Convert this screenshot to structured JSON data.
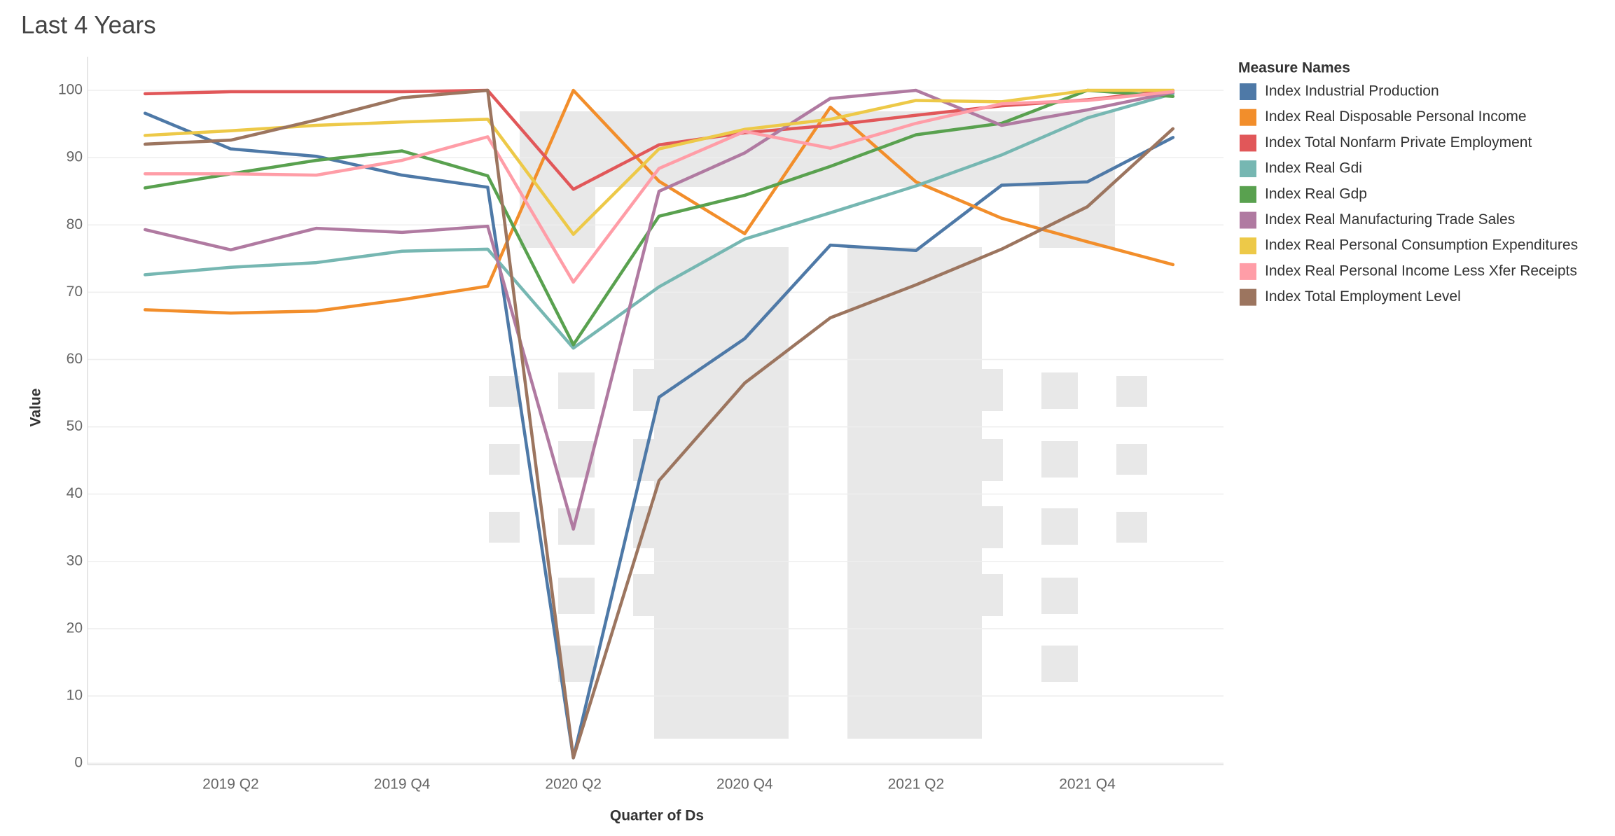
{
  "chart_data": {
    "type": "line",
    "title": "Last 4 Years",
    "x_label": "Quarter of Ds",
    "y_label": "Value",
    "categories": [
      null,
      "2019 Q2",
      null,
      "2019 Q4",
      null,
      "2020 Q2",
      null,
      "2020 Q4",
      null,
      "2021 Q2",
      null,
      "2021 Q4",
      null
    ],
    "ylim": [
      -0.2,
      105
    ],
    "yticks": [
      0,
      10,
      20,
      30,
      40,
      50,
      60,
      70,
      80,
      90,
      100
    ],
    "grid": true,
    "legend_title": "Measure Names",
    "legend_position": "right",
    "series": [
      {
        "name": "Index Industrial Production",
        "color": "#4e79a7",
        "values": [
          96.6,
          91.3,
          90.2,
          87.4,
          85.6,
          0.8,
          54.4,
          63.1,
          77.0,
          76.2,
          85.9,
          86.4,
          93.0
        ]
      },
      {
        "name": "Index Real Disposable Personal Income",
        "color": "#f28e2b",
        "values": [
          67.4,
          66.9,
          67.2,
          68.9,
          70.9,
          100,
          86.5,
          78.7,
          97.5,
          86.4,
          81.0,
          77.5,
          74.1
        ]
      },
      {
        "name": "Index Total Nonfarm Private Employment",
        "color": "#e15759",
        "values": [
          99.5,
          99.8,
          99.8,
          99.8,
          100,
          85.3,
          91.9,
          93.7,
          94.8,
          96.3,
          97.7,
          98.6,
          100
        ]
      },
      {
        "name": "Index Real Gdi",
        "color": "#76b7b2",
        "values": [
          72.6,
          73.7,
          74.4,
          76.1,
          76.4,
          61.7,
          70.8,
          77.9,
          81.8,
          85.8,
          90.4,
          95.9,
          99.5
        ]
      },
      {
        "name": "Index Real Gdp",
        "color": "#59a14f",
        "values": [
          85.5,
          87.6,
          89.6,
          91.0,
          87.3,
          62.2,
          81.3,
          84.4,
          88.7,
          93.4,
          95.1,
          100,
          99.1
        ]
      },
      {
        "name": "Index Real Manufacturing Trade Sales",
        "color": "#b07aa1",
        "values": [
          79.3,
          76.3,
          79.5,
          78.9,
          79.8,
          34.8,
          85.0,
          90.7,
          98.8,
          100,
          94.8,
          97.1,
          99.7
        ]
      },
      {
        "name": "Index Real Personal Consumption Expenditures",
        "color": "#edc948",
        "values": [
          93.3,
          94.0,
          94.8,
          95.3,
          95.7,
          78.6,
          91.3,
          94.2,
          95.7,
          98.5,
          98.3,
          100,
          100
        ]
      },
      {
        "name": "Index Real Personal Income Less Xfer Receipts",
        "color": "#ff9da7",
        "values": [
          87.6,
          87.6,
          87.4,
          89.6,
          93.1,
          71.5,
          88.4,
          93.9,
          91.4,
          95.1,
          98.0,
          98.5,
          99.8
        ]
      },
      {
        "name": "Index Total Employment Level",
        "color": "#9c755f",
        "values": [
          92.0,
          92.6,
          95.6,
          98.9,
          100,
          0.8,
          42.0,
          56.5,
          66.2,
          71.1,
          76.4,
          82.7,
          94.3
        ]
      }
    ]
  }
}
